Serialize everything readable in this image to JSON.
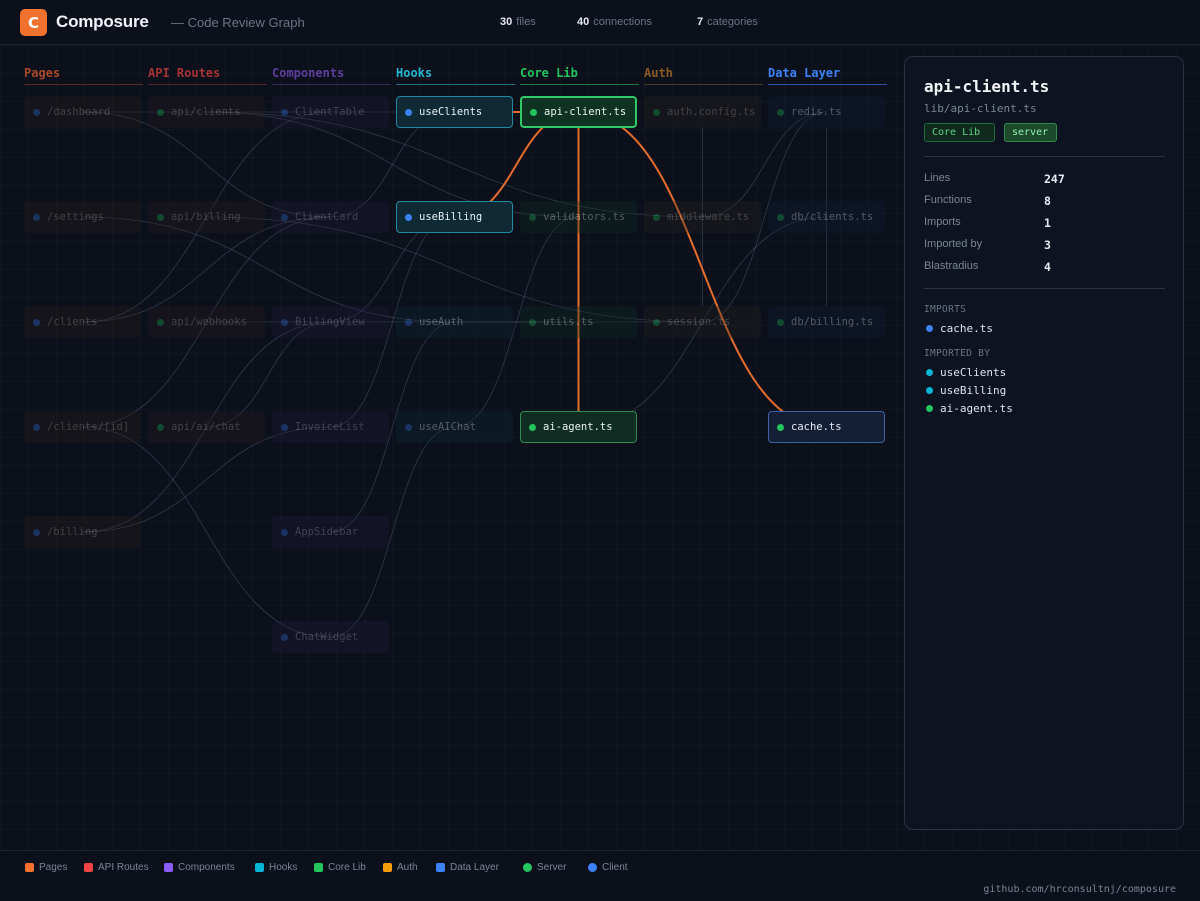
{
  "header": {
    "logo_letter": "C",
    "app_name": "Composure",
    "subtitle": "— Code Review Graph",
    "stats": [
      {
        "value": "30",
        "label": "files"
      },
      {
        "value": "40",
        "label": "connections"
      },
      {
        "value": "7",
        "label": "categories"
      }
    ]
  },
  "colors": {
    "accent": "#f0722e",
    "pages": "#f0722e",
    "api_routes": "#ef4444",
    "components": "#8b5cf6",
    "hooks": "#06b6d4",
    "core_lib": "#22c55e",
    "auth": "#f59e0b",
    "data_layer": "#3b82f6",
    "server_dot": "#22c55e",
    "client_dot": "#3b82f6",
    "highlight_edge": "#f0722e"
  },
  "columns": [
    {
      "key": "pages",
      "label": "Pages",
      "color": "#a8492a",
      "underline": "#5a2c1e",
      "bg": "#2a1f1b",
      "text": "#b3a79b",
      "nodes": [
        {
          "label": "/dashboard",
          "env": "client",
          "state": "dim"
        },
        {
          "label": "/settings",
          "env": "client",
          "state": "dim"
        },
        {
          "label": "/clients",
          "env": "client",
          "state": "dim"
        },
        {
          "label": "/clients/[id]",
          "env": "client",
          "state": "dim"
        },
        {
          "label": "/billing",
          "env": "client",
          "state": "dim"
        }
      ]
    },
    {
      "key": "api",
      "label": "API Routes",
      "color": "#a63434",
      "underline": "#53232a",
      "bg": "#2b1a20",
      "text": "#b3a1a4",
      "nodes": [
        {
          "label": "api/clients",
          "env": "server",
          "state": "dim"
        },
        {
          "label": "api/billing",
          "env": "server",
          "state": "dim"
        },
        {
          "label": "api/webhooks",
          "env": "server",
          "state": "dim"
        },
        {
          "label": "api/ai/chat",
          "env": "server",
          "state": "dim"
        }
      ]
    },
    {
      "key": "components",
      "label": "Components",
      "color": "#5f3d9e",
      "underline": "#38295a",
      "bg": "#221d3e",
      "text": "#a9a5c6",
      "nodes": [
        {
          "label": "ClientTable",
          "env": "client",
          "state": "dim"
        },
        {
          "label": "ClientCard",
          "env": "client",
          "state": "dim"
        },
        {
          "label": "BillingView",
          "env": "client",
          "state": "dim"
        },
        {
          "label": "InvoiceList",
          "env": "client",
          "state": "dim"
        },
        {
          "label": "AppSidebar",
          "env": "client",
          "state": "dim"
        },
        {
          "label": "ChatWidget",
          "env": "client",
          "state": "dim"
        }
      ]
    },
    {
      "key": "hooks",
      "label": "Hooks",
      "color": "#22b7d4",
      "underline": "#1a6f82",
      "bg": "#0f2a35",
      "text": "#e6f3f6",
      "nodes": [
        {
          "label": "useClients",
          "env": "client",
          "state": "active"
        },
        {
          "label": "useBilling",
          "env": "client",
          "state": "active"
        },
        {
          "label": "useAuth",
          "env": "client",
          "state": "dim"
        },
        {
          "label": "useAIChat",
          "env": "client",
          "state": "dim"
        }
      ]
    },
    {
      "key": "core",
      "label": "Core Lib",
      "color": "#22c55e",
      "underline": "#1f7a40",
      "bg": "#0f2d22",
      "text": "#e8f5ec",
      "nodes": [
        {
          "label": "api-client.ts",
          "env": "server",
          "state": "selected"
        },
        {
          "label": "validators.ts",
          "env": "server",
          "state": "dim"
        },
        {
          "label": "utils.ts",
          "env": "server",
          "state": "dim"
        },
        {
          "label": "ai-agent.ts",
          "env": "server",
          "state": "active"
        }
      ]
    },
    {
      "key": "auth",
      "label": "Auth",
      "color": "#8a5a22",
      "underline": "#4e3a22",
      "bg": "#2a241f",
      "text": "#b6ad9e",
      "nodes": [
        {
          "label": "auth.config.ts",
          "env": "server",
          "state": "dim"
        },
        {
          "label": "middleware.ts",
          "env": "server",
          "state": "dim"
        },
        {
          "label": "session.ts",
          "env": "server",
          "state": "dim"
        }
      ]
    },
    {
      "key": "data",
      "label": "Data Layer",
      "color": "#3b82f6",
      "underline": "#2a58a8",
      "bg": "#141f36",
      "text": "#e4ebf7",
      "nodes": [
        {
          "label": "redis.ts",
          "env": "server",
          "state": "dim"
        },
        {
          "label": "db/clients.ts",
          "env": "server",
          "state": "dim"
        },
        {
          "label": "db/billing.ts",
          "env": "server",
          "state": "dim"
        },
        {
          "label": "cache.ts",
          "env": "server",
          "state": "active"
        }
      ]
    }
  ],
  "panel": {
    "title": "api-client.ts",
    "path": "lib/api-client.ts",
    "badges": {
      "category": "Core Lib",
      "env": "server"
    },
    "metrics": [
      {
        "label": "Lines",
        "value": "247"
      },
      {
        "label": "Functions",
        "value": "8"
      },
      {
        "label": "Imports",
        "value": "1"
      },
      {
        "label": "Imported by",
        "value": "3"
      },
      {
        "label": "Blastradius",
        "value": "4"
      }
    ],
    "imports_heading": "IMPORTS",
    "imports": [
      {
        "label": "cache.ts",
        "env": "client"
      }
    ],
    "imported_by_heading": "IMPORTED BY",
    "imported_by": [
      {
        "label": "useClients",
        "env": "hook"
      },
      {
        "label": "useBilling",
        "env": "hook"
      },
      {
        "label": "ai-agent.ts",
        "env": "server"
      }
    ]
  },
  "footer": {
    "legend": [
      {
        "label": "Pages",
        "color": "#f0722e",
        "shape": "square"
      },
      {
        "label": "API Routes",
        "color": "#ef4444",
        "shape": "square"
      },
      {
        "label": "Components",
        "color": "#8b5cf6",
        "shape": "square"
      },
      {
        "label": "Hooks",
        "color": "#06b6d4",
        "shape": "square"
      },
      {
        "label": "Core Lib",
        "color": "#22c55e",
        "shape": "square"
      },
      {
        "label": "Auth",
        "color": "#f59e0b",
        "shape": "square"
      },
      {
        "label": "Data Layer",
        "color": "#3b82f6",
        "shape": "square"
      },
      {
        "label": "Server",
        "color": "#22c55e",
        "shape": "round"
      },
      {
        "label": "Client",
        "color": "#3b82f6",
        "shape": "round"
      }
    ],
    "repo": "github.com/hrconsultnj/composure"
  }
}
